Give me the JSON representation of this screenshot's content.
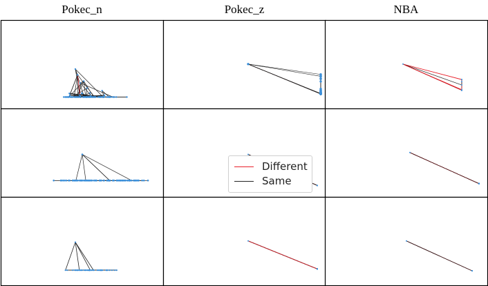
{
  "columns": [
    {
      "title": "Pokec_n"
    },
    {
      "title": "Pokec_z"
    },
    {
      "title": "NBA"
    }
  ],
  "legend": {
    "items": [
      {
        "label": "Different",
        "color": "#e8202a"
      },
      {
        "label": "Same",
        "color": "#222222"
      }
    ]
  },
  "colors": {
    "node": "#3b8fd9",
    "edge_same": "#222222",
    "edge_different": "#e8202a",
    "frame": "#000000"
  },
  "panels": [
    {
      "column": "Pokec_n",
      "row": 1
    },
    {
      "column": "Pokec_z",
      "row": 1
    },
    {
      "column": "NBA",
      "row": 1
    },
    {
      "column": "Pokec_n",
      "row": 2
    },
    {
      "column": "Pokec_z",
      "row": 2
    },
    {
      "column": "NBA",
      "row": 2
    },
    {
      "column": "Pokec_n",
      "row": 3
    },
    {
      "column": "Pokec_z",
      "row": 3
    },
    {
      "column": "NBA",
      "row": 3
    }
  ]
}
